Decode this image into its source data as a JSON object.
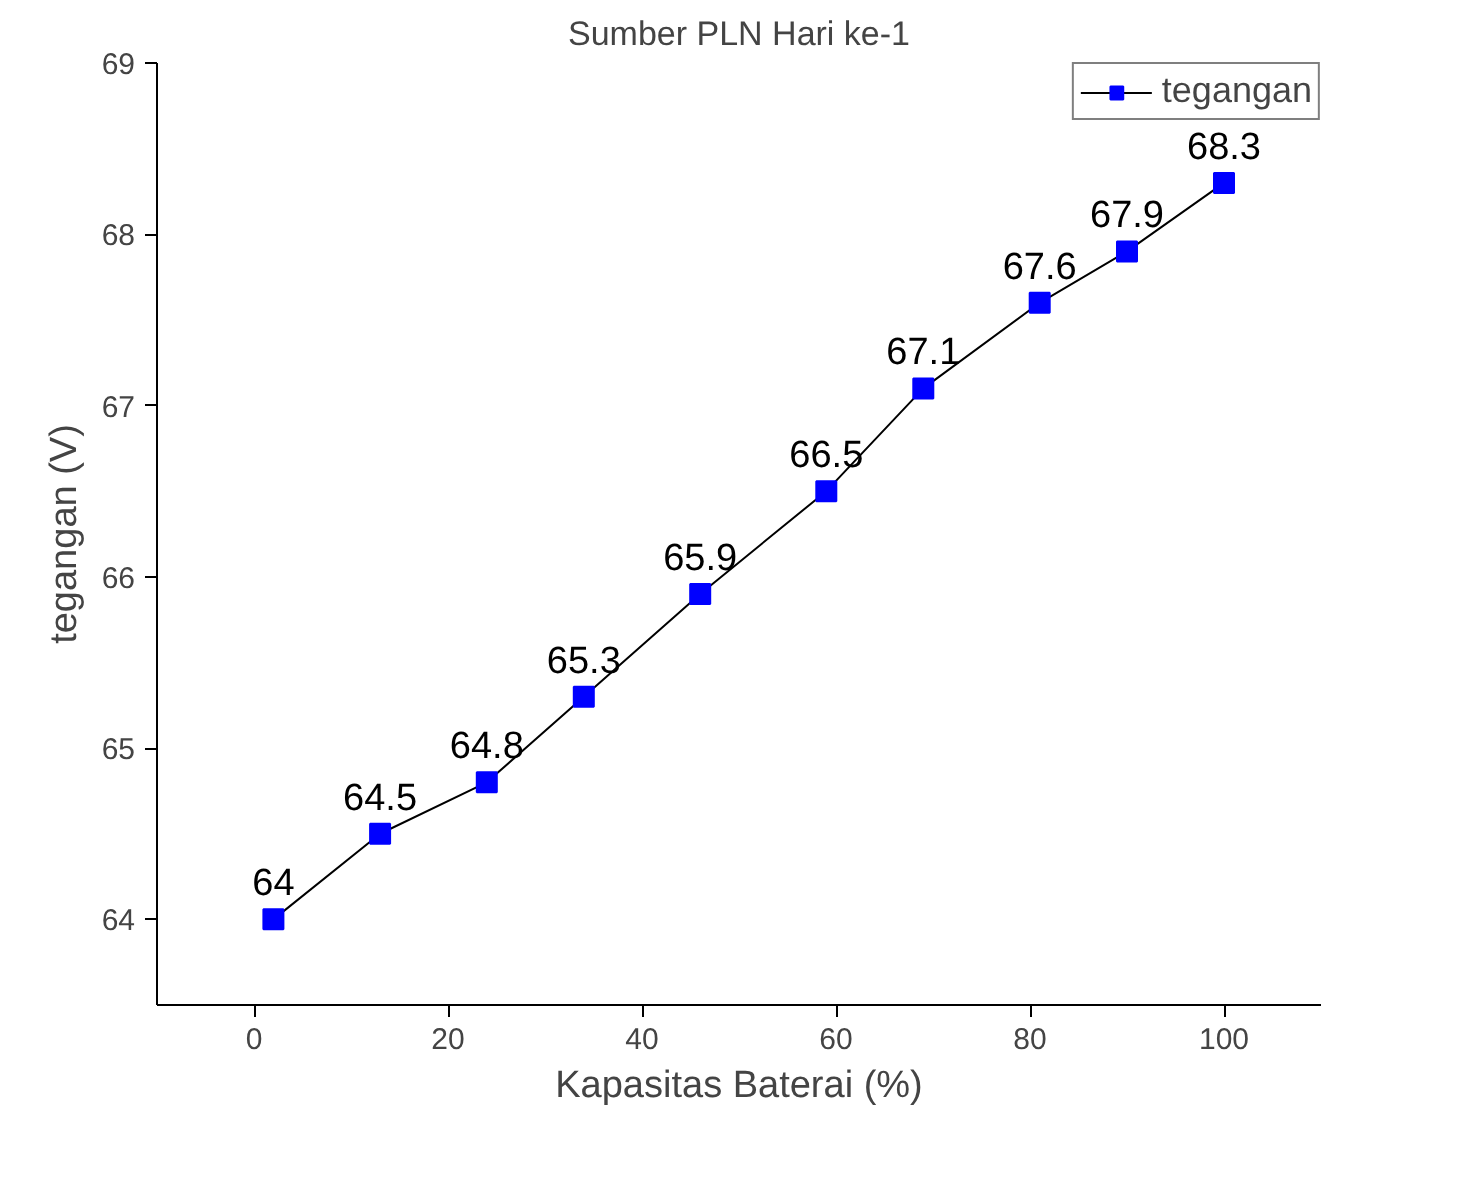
{
  "chart_data": {
    "type": "line",
    "title": "Sumber PLN Hari ke-1",
    "xlabel": "Kapasitas Baterai (%)",
    "ylabel": "tegangan (V)",
    "x": [
      2,
      13,
      24,
      34,
      46,
      59,
      69,
      81,
      90,
      100
    ],
    "series": [
      {
        "name": "tegangan",
        "color": "#0000ff",
        "values": [
          64,
          64.5,
          64.8,
          65.3,
          65.9,
          66.5,
          67.1,
          67.6,
          67.9,
          68.3
        ]
      }
    ],
    "xlim": [
      -10,
      110
    ],
    "xticks": [
      0,
      20,
      40,
      60,
      80,
      100
    ],
    "ylim": [
      63.5,
      69
    ],
    "yticks": [
      64,
      65,
      66,
      67,
      68,
      69
    ],
    "grid": false,
    "legend": "top right",
    "marker": "square",
    "line_style": "solid",
    "data_labels": true
  }
}
